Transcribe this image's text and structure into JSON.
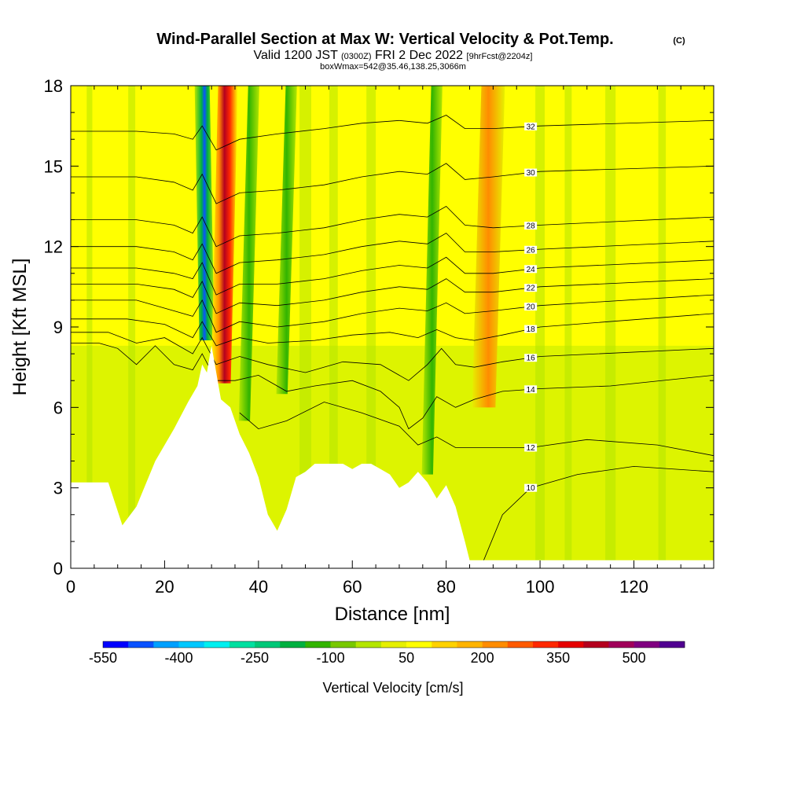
{
  "title": {
    "main": "Wind-Parallel Section at Max W: Vertical Velocity & Pot.Temp.",
    "copyright": "(C)",
    "valid_prefix": "Valid 1200 JST",
    "valid_utc": "(0300Z)",
    "valid_date": "FRI 2 Dec 2022",
    "forecast": "[9hrFcst@2204z]",
    "box": "boxWmax=542@35.46,138.25,3066m"
  },
  "chart_data": {
    "type": "heatmap",
    "title": "Wind-Parallel Section at Max W: Vertical Velocity & Pot.Temp.",
    "xlabel": "Distance [nm]",
    "ylabel": "Height [Kft MSL]",
    "xlim": [
      0,
      137
    ],
    "ylim": [
      0,
      18
    ],
    "x_ticks": [
      "0",
      "20",
      "40",
      "60",
      "80",
      "100",
      "120"
    ],
    "y_ticks": [
      "0",
      "3",
      "6",
      "9",
      "12",
      "15",
      "18"
    ],
    "colorbar": {
      "label": "Vertical Velocity [cm/s]",
      "tick_labels": [
        "-550",
        "-400",
        "-250",
        "-100",
        "50",
        "200",
        "350",
        "500"
      ],
      "tick_values": [
        -550,
        -400,
        -250,
        -100,
        50,
        200,
        350,
        500
      ],
      "range": [
        -550,
        600
      ],
      "colors": [
        "#0000ff",
        "#0a52ff",
        "#00a0ff",
        "#00c8ff",
        "#00f0f0",
        "#00e0a0",
        "#00c878",
        "#00b040",
        "#32b400",
        "#78c800",
        "#b4e600",
        "#e6f000",
        "#ffff00",
        "#ffd200",
        "#ffb400",
        "#ff8c00",
        "#ff5a00",
        "#ff2800",
        "#e60000",
        "#b4001e",
        "#a0005a",
        "#800080",
        "#500090"
      ]
    },
    "velocity_features": [
      {
        "x": 29,
        "y_bottom": 8.5,
        "y_top": 18,
        "w_cms": -500
      },
      {
        "x": 32,
        "y_bottom": 6.9,
        "y_top": 18,
        "w_cms": 542
      },
      {
        "x": 37,
        "y_bottom": 5.5,
        "y_top": 18,
        "w_cms": -120
      },
      {
        "x": 45,
        "y_bottom": 6.5,
        "y_top": 18,
        "w_cms": -80
      },
      {
        "x": 76,
        "y_bottom": 3.5,
        "y_top": 18,
        "w_cms": -150
      },
      {
        "x": 88,
        "y_bottom": 6.0,
        "y_top": 18,
        "w_cms": 170
      }
    ],
    "terrain_kft": {
      "x": [
        0,
        8,
        11,
        14,
        18,
        22,
        25,
        27,
        28,
        29,
        30,
        31,
        32,
        34,
        36,
        38,
        40,
        42,
        44,
        46,
        48,
        50,
        52,
        55,
        58,
        60,
        62,
        64,
        66,
        68,
        70,
        72,
        74,
        76,
        78,
        80,
        82,
        84,
        85,
        90,
        100,
        110,
        120,
        130,
        137
      ],
      "y": [
        3.2,
        3.2,
        1.6,
        2.3,
        4.0,
        5.2,
        6.2,
        6.8,
        7.6,
        7.3,
        8.3,
        7.3,
        6.3,
        6.0,
        5.0,
        4.3,
        3.4,
        2.0,
        1.4,
        2.2,
        3.4,
        3.6,
        3.9,
        3.9,
        3.9,
        3.7,
        3.9,
        3.9,
        3.7,
        3.5,
        3.0,
        3.2,
        3.6,
        3.2,
        2.6,
        3.1,
        2.3,
        1.0,
        0.3,
        0.3,
        0.3,
        0.3,
        0.3,
        0.3,
        0.3
      ]
    },
    "potential_temperature": [
      {
        "level": 10,
        "label": "10",
        "label_x": 98,
        "pts": [
          [
            88,
            0.3
          ],
          [
            92,
            2.0
          ],
          [
            98,
            3.0
          ],
          [
            108,
            3.5
          ],
          [
            120,
            3.8
          ],
          [
            137,
            3.6
          ]
        ]
      },
      {
        "level": 12,
        "label": "12",
        "label_x": 98,
        "pts": [
          [
            36,
            5.8
          ],
          [
            40,
            5.2
          ],
          [
            46,
            5.5
          ],
          [
            54,
            6.2
          ],
          [
            62,
            5.8
          ],
          [
            70,
            5.3
          ],
          [
            74,
            4.6
          ],
          [
            78,
            4.9
          ],
          [
            82,
            4.5
          ],
          [
            86,
            4.5
          ],
          [
            92,
            4.5
          ],
          [
            98,
            4.5
          ],
          [
            110,
            4.8
          ],
          [
            125,
            4.6
          ],
          [
            137,
            4.2
          ]
        ]
      },
      {
        "level": 14,
        "label": "14",
        "label_x": 98,
        "pts": [
          [
            0,
            8.4
          ],
          [
            6,
            8.4
          ],
          [
            10,
            8.2
          ],
          [
            14,
            7.6
          ],
          [
            18,
            8.3
          ],
          [
            22,
            7.6
          ],
          [
            26,
            7.4
          ],
          [
            28,
            8.0
          ],
          [
            31,
            7.0
          ],
          [
            35,
            7.0
          ],
          [
            40,
            7.2
          ],
          [
            46,
            6.6
          ],
          [
            52,
            6.8
          ],
          [
            60,
            7.0
          ],
          [
            66,
            6.6
          ],
          [
            70,
            6.0
          ],
          [
            72,
            5.2
          ],
          [
            75,
            5.6
          ],
          [
            78,
            6.4
          ],
          [
            82,
            6.0
          ],
          [
            86,
            6.3
          ],
          [
            92,
            6.6
          ],
          [
            100,
            6.7
          ],
          [
            115,
            6.8
          ],
          [
            137,
            7.2
          ]
        ]
      },
      {
        "level": 16,
        "label": "16",
        "label_x": 98,
        "pts": [
          [
            0,
            8.8
          ],
          [
            8,
            8.8
          ],
          [
            14,
            8.4
          ],
          [
            20,
            8.6
          ],
          [
            26,
            8.0
          ],
          [
            28,
            8.6
          ],
          [
            31,
            7.6
          ],
          [
            36,
            7.9
          ],
          [
            42,
            7.6
          ],
          [
            50,
            7.3
          ],
          [
            58,
            7.7
          ],
          [
            66,
            7.6
          ],
          [
            72,
            7.0
          ],
          [
            76,
            7.6
          ],
          [
            79,
            8.2
          ],
          [
            82,
            7.6
          ],
          [
            86,
            7.5
          ],
          [
            92,
            7.7
          ],
          [
            100,
            7.9
          ],
          [
            137,
            8.2
          ]
        ]
      },
      {
        "level": 18,
        "label": "18",
        "label_x": 98,
        "pts": [
          [
            0,
            9.3
          ],
          [
            12,
            9.3
          ],
          [
            20,
            9.1
          ],
          [
            26,
            8.6
          ],
          [
            28,
            9.2
          ],
          [
            31,
            8.3
          ],
          [
            36,
            8.6
          ],
          [
            42,
            8.4
          ],
          [
            52,
            8.5
          ],
          [
            60,
            8.7
          ],
          [
            68,
            8.8
          ],
          [
            74,
            8.6
          ],
          [
            78,
            8.9
          ],
          [
            82,
            8.6
          ],
          [
            86,
            8.5
          ],
          [
            92,
            8.7
          ],
          [
            100,
            9.0
          ],
          [
            137,
            9.5
          ]
        ]
      },
      {
        "level": 20,
        "label": "20",
        "label_x": 98,
        "pts": [
          [
            0,
            10.0
          ],
          [
            14,
            10.0
          ],
          [
            22,
            9.6
          ],
          [
            26,
            9.4
          ],
          [
            28,
            10.0
          ],
          [
            31,
            8.8
          ],
          [
            36,
            9.2
          ],
          [
            44,
            9.0
          ],
          [
            54,
            9.2
          ],
          [
            62,
            9.5
          ],
          [
            70,
            9.7
          ],
          [
            76,
            9.6
          ],
          [
            80,
            9.9
          ],
          [
            84,
            9.5
          ],
          [
            90,
            9.6
          ],
          [
            100,
            9.8
          ],
          [
            137,
            10.2
          ]
        ]
      },
      {
        "level": 22,
        "label": "22",
        "label_x": 98,
        "pts": [
          [
            0,
            10.6
          ],
          [
            14,
            10.6
          ],
          [
            22,
            10.4
          ],
          [
            26,
            10.1
          ],
          [
            28,
            10.7
          ],
          [
            31,
            9.5
          ],
          [
            36,
            9.9
          ],
          [
            44,
            9.8
          ],
          [
            54,
            10.0
          ],
          [
            62,
            10.3
          ],
          [
            70,
            10.5
          ],
          [
            76,
            10.4
          ],
          [
            80,
            10.8
          ],
          [
            84,
            10.3
          ],
          [
            90,
            10.3
          ],
          [
            100,
            10.5
          ],
          [
            137,
            10.8
          ]
        ]
      },
      {
        "level": 24,
        "label": "24",
        "label_x": 98,
        "pts": [
          [
            0,
            11.2
          ],
          [
            14,
            11.2
          ],
          [
            22,
            11.0
          ],
          [
            26,
            10.8
          ],
          [
            28,
            11.4
          ],
          [
            31,
            10.2
          ],
          [
            36,
            10.6
          ],
          [
            44,
            10.6
          ],
          [
            54,
            10.8
          ],
          [
            62,
            11.1
          ],
          [
            70,
            11.3
          ],
          [
            76,
            11.2
          ],
          [
            80,
            11.6
          ],
          [
            84,
            11.0
          ],
          [
            90,
            11.0
          ],
          [
            100,
            11.2
          ],
          [
            137,
            11.5
          ]
        ]
      },
      {
        "level": 26,
        "label": "26",
        "label_x": 98,
        "pts": [
          [
            0,
            12.0
          ],
          [
            14,
            12.0
          ],
          [
            22,
            11.8
          ],
          [
            26,
            11.5
          ],
          [
            28,
            12.1
          ],
          [
            31,
            11.0
          ],
          [
            36,
            11.4
          ],
          [
            44,
            11.5
          ],
          [
            54,
            11.7
          ],
          [
            62,
            12.0
          ],
          [
            70,
            12.2
          ],
          [
            76,
            12.1
          ],
          [
            80,
            12.5
          ],
          [
            84,
            11.8
          ],
          [
            90,
            11.8
          ],
          [
            100,
            11.9
          ],
          [
            137,
            12.2
          ]
        ]
      },
      {
        "level": 28,
        "label": "28",
        "label_x": 98,
        "pts": [
          [
            0,
            13.0
          ],
          [
            14,
            13.0
          ],
          [
            22,
            12.8
          ],
          [
            26,
            12.5
          ],
          [
            28,
            13.1
          ],
          [
            31,
            12.0
          ],
          [
            36,
            12.4
          ],
          [
            44,
            12.5
          ],
          [
            54,
            12.7
          ],
          [
            62,
            13.0
          ],
          [
            70,
            13.2
          ],
          [
            76,
            13.1
          ],
          [
            80,
            13.5
          ],
          [
            84,
            12.8
          ],
          [
            90,
            12.7
          ],
          [
            100,
            12.8
          ],
          [
            137,
            13.1
          ]
        ]
      },
      {
        "level": 30,
        "label": "30",
        "label_x": 98,
        "pts": [
          [
            0,
            14.6
          ],
          [
            14,
            14.6
          ],
          [
            22,
            14.4
          ],
          [
            26,
            14.1
          ],
          [
            28,
            14.7
          ],
          [
            31,
            13.6
          ],
          [
            36,
            14.0
          ],
          [
            44,
            14.1
          ],
          [
            54,
            14.3
          ],
          [
            62,
            14.6
          ],
          [
            70,
            14.8
          ],
          [
            76,
            14.7
          ],
          [
            80,
            15.1
          ],
          [
            84,
            14.5
          ],
          [
            90,
            14.6
          ],
          [
            100,
            14.8
          ],
          [
            137,
            15.0
          ]
        ]
      },
      {
        "level": 32,
        "label": "32",
        "label_x": 98,
        "pts": [
          [
            0,
            16.3
          ],
          [
            14,
            16.3
          ],
          [
            22,
            16.2
          ],
          [
            26,
            16.0
          ],
          [
            28,
            16.5
          ],
          [
            31,
            15.6
          ],
          [
            36,
            16.0
          ],
          [
            44,
            16.2
          ],
          [
            54,
            16.4
          ],
          [
            62,
            16.6
          ],
          [
            70,
            16.7
          ],
          [
            76,
            16.6
          ],
          [
            80,
            16.9
          ],
          [
            84,
            16.4
          ],
          [
            90,
            16.4
          ],
          [
            100,
            16.5
          ],
          [
            137,
            16.7
          ]
        ]
      }
    ]
  }
}
